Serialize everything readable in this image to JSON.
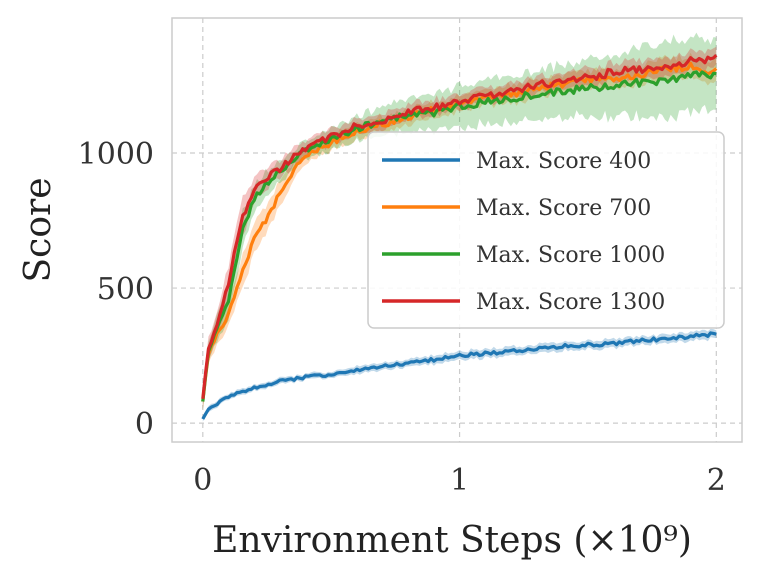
{
  "chart_data": {
    "type": "line",
    "title": "",
    "xlabel": "Environment Steps (×10⁹)",
    "ylabel": "Score",
    "xlim": [
      -0.12,
      2.1
    ],
    "ylim": [
      -70,
      1500
    ],
    "xticks": [
      0,
      1,
      2
    ],
    "xtick_labels": [
      "0",
      "1",
      "2"
    ],
    "yticks": [
      0,
      500,
      1000
    ],
    "ytick_labels": [
      "0",
      "500",
      "1000"
    ],
    "grid": true,
    "legend_position": "center-right",
    "series": [
      {
        "name": "Max. Score 400",
        "color": "#1f77b4",
        "x": [
          0,
          0.02,
          0.05,
          0.1,
          0.15,
          0.2,
          0.3,
          0.4,
          0.5,
          0.6,
          0.7,
          0.8,
          0.9,
          1.0,
          1.1,
          1.2,
          1.3,
          1.4,
          1.5,
          1.6,
          1.7,
          1.8,
          1.9,
          2.0
        ],
        "y": [
          15,
          50,
          70,
          95,
          115,
          130,
          155,
          170,
          180,
          195,
          210,
          220,
          235,
          250,
          258,
          265,
          275,
          285,
          290,
          295,
          305,
          312,
          322,
          330
        ],
        "band": [
          8,
          10,
          10,
          10,
          10,
          10,
          10,
          10,
          10,
          12,
          12,
          12,
          14,
          14,
          14,
          14,
          14,
          14,
          14,
          14,
          14,
          14,
          14,
          14
        ]
      },
      {
        "name": "Max. Score 700",
        "color": "#ff7f0e",
        "x": [
          0,
          0.02,
          0.05,
          0.1,
          0.15,
          0.2,
          0.25,
          0.3,
          0.35,
          0.4,
          0.5,
          0.6,
          0.7,
          0.8,
          0.9,
          1.0,
          1.1,
          1.2,
          1.3,
          1.4,
          1.5,
          1.6,
          1.7,
          1.8,
          1.9,
          2.0
        ],
        "y": [
          80,
          250,
          320,
          400,
          550,
          680,
          760,
          850,
          930,
          990,
          1040,
          1080,
          1110,
          1130,
          1160,
          1180,
          1200,
          1220,
          1240,
          1250,
          1270,
          1280,
          1290,
          1310,
          1320,
          1300
        ],
        "band": [
          30,
          30,
          35,
          40,
          50,
          50,
          45,
          40,
          30,
          25,
          25,
          25,
          25,
          25,
          25,
          25,
          25,
          30,
          30,
          30,
          30,
          30,
          30,
          35,
          35,
          35
        ]
      },
      {
        "name": "Max. Score 1000",
        "color": "#2ca02c",
        "x": [
          0,
          0.02,
          0.05,
          0.1,
          0.15,
          0.2,
          0.25,
          0.3,
          0.35,
          0.4,
          0.5,
          0.6,
          0.7,
          0.8,
          0.9,
          1.0,
          1.1,
          1.2,
          1.3,
          1.4,
          1.5,
          1.6,
          1.7,
          1.8,
          1.9,
          2.0
        ],
        "y": [
          80,
          260,
          340,
          450,
          700,
          830,
          890,
          930,
          970,
          1010,
          1050,
          1090,
          1120,
          1140,
          1150,
          1170,
          1190,
          1200,
          1220,
          1230,
          1240,
          1250,
          1260,
          1270,
          1290,
          1290
        ],
        "band": [
          30,
          30,
          40,
          60,
          60,
          40,
          40,
          35,
          30,
          30,
          35,
          40,
          45,
          55,
          60,
          65,
          70,
          75,
          80,
          85,
          90,
          100,
          110,
          120,
          120,
          110
        ]
      },
      {
        "name": "Max. Score 1300",
        "color": "#d62728",
        "x": [
          0,
          0.02,
          0.05,
          0.1,
          0.15,
          0.2,
          0.25,
          0.3,
          0.35,
          0.4,
          0.5,
          0.6,
          0.7,
          0.8,
          0.9,
          1.0,
          1.1,
          1.2,
          1.3,
          1.4,
          1.5,
          1.6,
          1.7,
          1.8,
          1.9,
          2.0
        ],
        "y": [
          90,
          270,
          350,
          520,
          750,
          860,
          910,
          940,
          980,
          1020,
          1060,
          1100,
          1120,
          1150,
          1170,
          1190,
          1210,
          1230,
          1250,
          1270,
          1280,
          1300,
          1310,
          1320,
          1340,
          1350
        ],
        "band": [
          40,
          35,
          40,
          60,
          60,
          40,
          35,
          30,
          30,
          25,
          25,
          25,
          25,
          25,
          25,
          25,
          25,
          25,
          25,
          25,
          30,
          30,
          30,
          30,
          30,
          30
        ]
      }
    ]
  }
}
